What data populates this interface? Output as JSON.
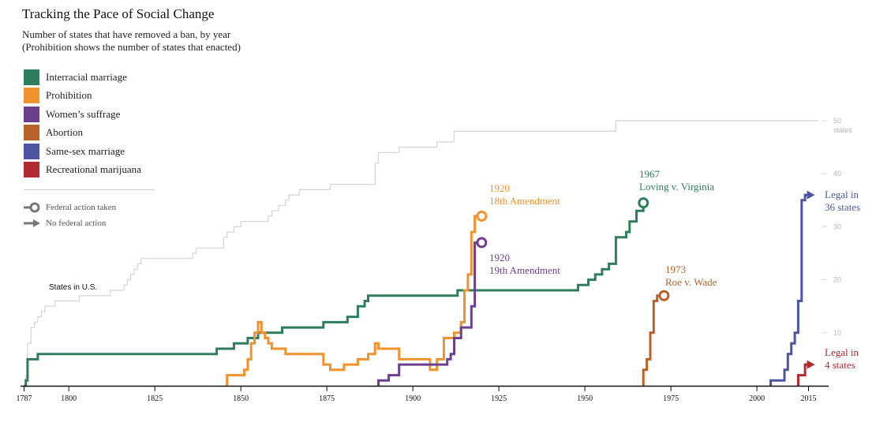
{
  "title": "Tracking the Pace of Social Change",
  "subtitle": {
    "line1": "Number of states that have removed a ban, by year",
    "line2": "(Prohibition shows the number of states that enacted)"
  },
  "legend": [
    {
      "label": "Interracial marriage",
      "color": "#2e7d5b"
    },
    {
      "label": "Prohibition",
      "color": "#f0922e"
    },
    {
      "label": "Women’s suffrage",
      "color": "#6d3f8f"
    },
    {
      "label": "Abortion",
      "color": "#b8622a"
    },
    {
      "label": "Same-sex marriage",
      "color": "#4d55a3"
    },
    {
      "label": "Recreational marijuana",
      "color": "#b02a30"
    }
  ],
  "key": {
    "federal": "Federal action taken",
    "none": "No federal action"
  },
  "chart_data": {
    "type": "line",
    "x_ticks": [
      1787,
      1800,
      1825,
      1850,
      1875,
      1900,
      1925,
      1950,
      1975,
      2000,
      2015
    ],
    "y_ticks": [
      10,
      20,
      30,
      40,
      50
    ],
    "y_top_label": "50",
    "y_top_unit": "states",
    "xlim": [
      1787,
      2020
    ],
    "ylim": [
      0,
      50
    ],
    "states_label": "States in U.S.",
    "states_in_us": [
      [
        1787,
        0
      ],
      [
        1787.5,
        2
      ],
      [
        1788,
        8
      ],
      [
        1789,
        11
      ],
      [
        1790,
        12
      ],
      [
        1791,
        13
      ],
      [
        1792,
        14
      ],
      [
        1793,
        15
      ],
      [
        1796,
        16
      ],
      [
        1803,
        17
      ],
      [
        1812,
        18
      ],
      [
        1816,
        19
      ],
      [
        1817,
        20
      ],
      [
        1818,
        21
      ],
      [
        1819,
        22
      ],
      [
        1820,
        23
      ],
      [
        1821,
        24
      ],
      [
        1836,
        25
      ],
      [
        1837,
        26
      ],
      [
        1845,
        28
      ],
      [
        1846,
        29
      ],
      [
        1848,
        30
      ],
      [
        1850,
        31
      ],
      [
        1858,
        32
      ],
      [
        1859,
        33
      ],
      [
        1861,
        34
      ],
      [
        1863,
        35
      ],
      [
        1864,
        36
      ],
      [
        1867,
        37
      ],
      [
        1876,
        38
      ],
      [
        1889,
        42
      ],
      [
        1890,
        44
      ],
      [
        1896,
        45
      ],
      [
        1907,
        46
      ],
      [
        1912,
        48
      ],
      [
        1959,
        50
      ],
      [
        2018,
        50
      ]
    ],
    "series": [
      {
        "name": "Interracial marriage",
        "color": "#2e7d5b",
        "ending": "circle",
        "points": [
          [
            1787,
            0
          ],
          [
            1787.5,
            1
          ],
          [
            1788,
            5
          ],
          [
            1791,
            6
          ],
          [
            1843,
            6
          ],
          [
            1843,
            7
          ],
          [
            1848,
            7
          ],
          [
            1848,
            8
          ],
          [
            1852,
            8
          ],
          [
            1852,
            9
          ],
          [
            1855,
            9
          ],
          [
            1855,
            10
          ],
          [
            1862,
            10
          ],
          [
            1862,
            11
          ],
          [
            1874,
            11
          ],
          [
            1874,
            12
          ],
          [
            1881,
            12
          ],
          [
            1881,
            13
          ],
          [
            1884,
            13
          ],
          [
            1884,
            15
          ],
          [
            1886,
            15
          ],
          [
            1886,
            16
          ],
          [
            1887,
            16
          ],
          [
            1887,
            17
          ],
          [
            1913,
            17
          ],
          [
            1913,
            18
          ],
          [
            1948,
            18
          ],
          [
            1948,
            19
          ],
          [
            1951,
            19
          ],
          [
            1951,
            20
          ],
          [
            1953,
            20
          ],
          [
            1953,
            21
          ],
          [
            1955,
            21
          ],
          [
            1955,
            22
          ],
          [
            1957,
            22
          ],
          [
            1957,
            23
          ],
          [
            1959,
            23
          ],
          [
            1959,
            28
          ],
          [
            1962,
            28
          ],
          [
            1962,
            29
          ],
          [
            1963,
            29
          ],
          [
            1963,
            31
          ],
          [
            1965,
            31
          ],
          [
            1965,
            33
          ],
          [
            1967,
            33
          ],
          [
            1967,
            34.5
          ]
        ],
        "label": "1967\nLoving v. Virginia"
      },
      {
        "name": "Prohibition",
        "color": "#f0922e",
        "ending": "circle",
        "points": [
          [
            1846,
            0
          ],
          [
            1846,
            2
          ],
          [
            1851,
            2
          ],
          [
            1851,
            3
          ],
          [
            1852,
            3
          ],
          [
            1852,
            5
          ],
          [
            1853,
            5
          ],
          [
            1853,
            8
          ],
          [
            1854,
            8
          ],
          [
            1854,
            10
          ],
          [
            1855,
            10
          ],
          [
            1855,
            12
          ],
          [
            1856,
            12
          ],
          [
            1856,
            10
          ],
          [
            1857,
            10
          ],
          [
            1857,
            9
          ],
          [
            1858,
            9
          ],
          [
            1858,
            8
          ],
          [
            1859,
            8
          ],
          [
            1859,
            7
          ],
          [
            1863,
            7
          ],
          [
            1863,
            6
          ],
          [
            1874,
            6
          ],
          [
            1874,
            4
          ],
          [
            1876,
            4
          ],
          [
            1876,
            3
          ],
          [
            1880,
            3
          ],
          [
            1880,
            4
          ],
          [
            1884,
            4
          ],
          [
            1884,
            5
          ],
          [
            1887,
            5
          ],
          [
            1887,
            6
          ],
          [
            1889,
            6
          ],
          [
            1889,
            8
          ],
          [
            1890,
            8
          ],
          [
            1890,
            7
          ],
          [
            1896,
            7
          ],
          [
            1896,
            5
          ],
          [
            1905,
            5
          ],
          [
            1905,
            3
          ],
          [
            1907,
            3
          ],
          [
            1907,
            5
          ],
          [
            1909,
            5
          ],
          [
            1909,
            9
          ],
          [
            1912,
            9
          ],
          [
            1912,
            10
          ],
          [
            1914,
            10
          ],
          [
            1914,
            12
          ],
          [
            1915,
            12
          ],
          [
            1915,
            18
          ],
          [
            1916,
            18
          ],
          [
            1916,
            21
          ],
          [
            1917,
            21
          ],
          [
            1917,
            29
          ],
          [
            1918,
            29
          ],
          [
            1918,
            32
          ],
          [
            1920,
            32
          ]
        ],
        "label": "1920\n18th Amendment"
      },
      {
        "name": "Women’s suffrage",
        "color": "#6d3f8f",
        "ending": "circle",
        "points": [
          [
            1890,
            0
          ],
          [
            1890,
            1
          ],
          [
            1893,
            1
          ],
          [
            1893,
            2
          ],
          [
            1896,
            2
          ],
          [
            1896,
            4
          ],
          [
            1910,
            4
          ],
          [
            1910,
            5
          ],
          [
            1911,
            5
          ],
          [
            1911,
            6
          ],
          [
            1912,
            6
          ],
          [
            1912,
            9
          ],
          [
            1914,
            9
          ],
          [
            1914,
            11
          ],
          [
            1917,
            11
          ],
          [
            1917,
            15
          ],
          [
            1918,
            15
          ],
          [
            1918,
            27
          ],
          [
            1920,
            27
          ]
        ],
        "label": "1920\n19th Amendment"
      },
      {
        "name": "Abortion",
        "color": "#b8622a",
        "ending": "circle",
        "points": [
          [
            1967,
            0
          ],
          [
            1967,
            3
          ],
          [
            1968,
            3
          ],
          [
            1968,
            5
          ],
          [
            1969,
            5
          ],
          [
            1969,
            10
          ],
          [
            1970,
            10
          ],
          [
            1970,
            16
          ],
          [
            1971,
            16
          ],
          [
            1971,
            17
          ],
          [
            1973,
            17
          ]
        ],
        "label": "1973\nRoe v. Wade"
      },
      {
        "name": "Same-sex marriage",
        "color": "#4d55a3",
        "ending": "arrow",
        "points": [
          [
            2004,
            0
          ],
          [
            2004,
            1
          ],
          [
            2008,
            1
          ],
          [
            2008,
            3
          ],
          [
            2009,
            3
          ],
          [
            2009,
            6
          ],
          [
            2010,
            6
          ],
          [
            2010,
            8
          ],
          [
            2011,
            8
          ],
          [
            2011,
            10
          ],
          [
            2012,
            10
          ],
          [
            2012,
            16
          ],
          [
            2013,
            16
          ],
          [
            2013,
            35
          ],
          [
            2014,
            35
          ],
          [
            2014,
            36
          ],
          [
            2015,
            36
          ]
        ],
        "label": "Legal in\n36 states"
      },
      {
        "name": "Recreational marijuana",
        "color": "#b02a30",
        "ending": "arrow",
        "points": [
          [
            2012,
            0
          ],
          [
            2012,
            2
          ],
          [
            2014,
            2
          ],
          [
            2014,
            4
          ],
          [
            2015,
            4
          ]
        ],
        "label": "Legal in\n4 states"
      }
    ]
  }
}
